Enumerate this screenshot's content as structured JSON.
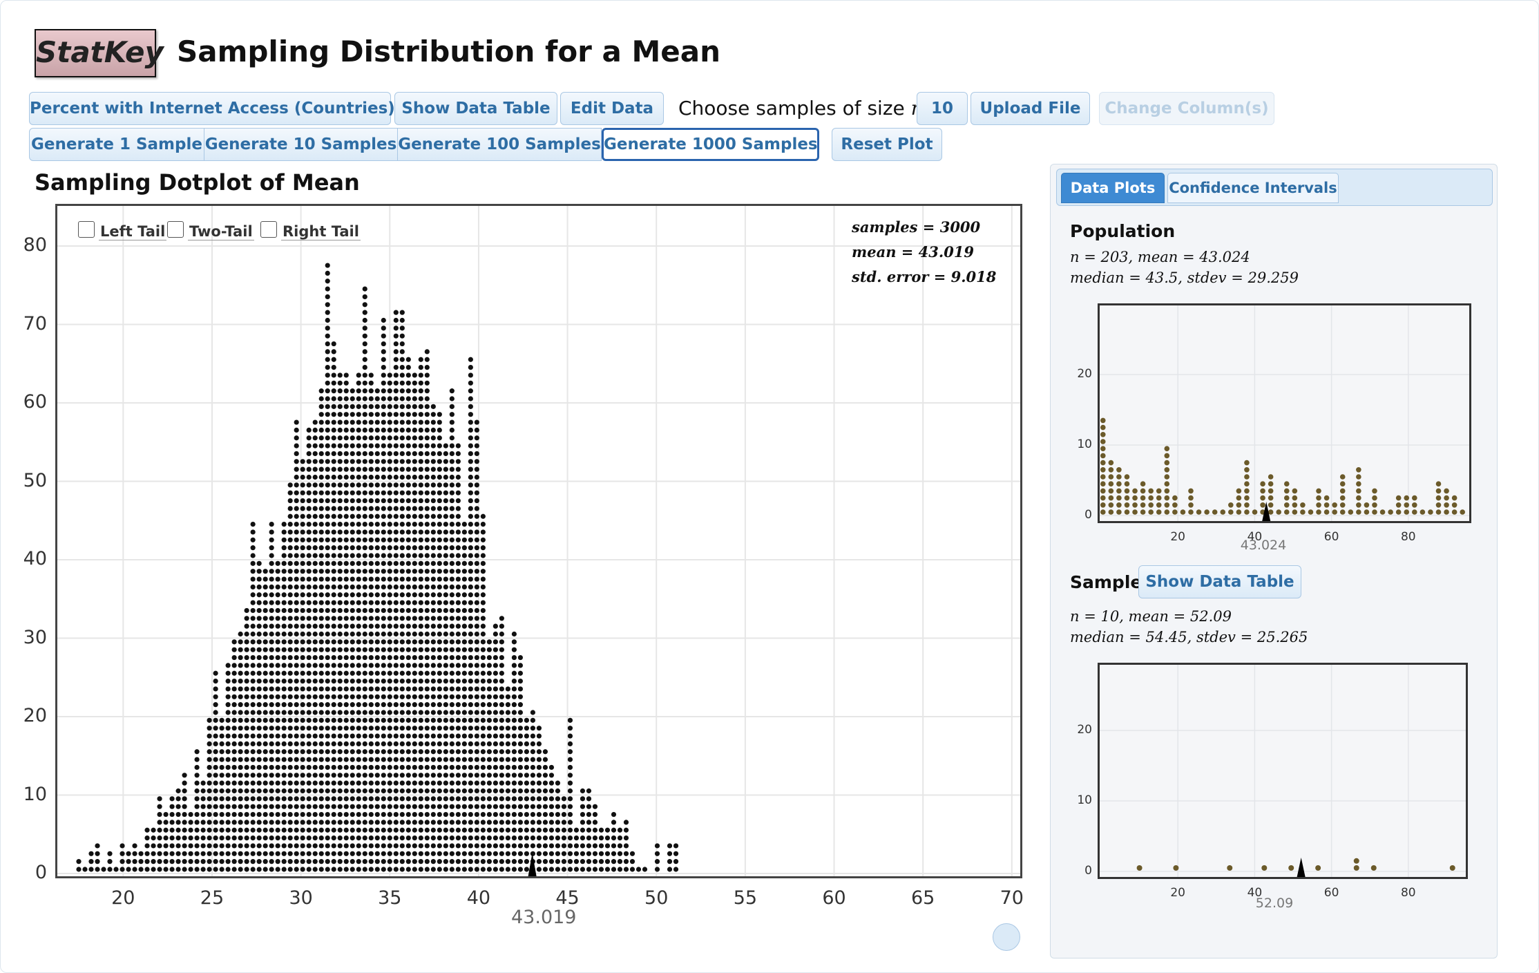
{
  "header": {
    "logo": "StatKey",
    "title": "Sampling Distribution for a Mean"
  },
  "toolbar": {
    "dataset": "Percent with Internet Access (Countries)",
    "show_table": "Show Data Table",
    "edit_data": "Edit Data",
    "choose_text": "Choose samples of size",
    "n_symbol": "n =",
    "n_value": "10",
    "upload": "Upload File",
    "change_columns": "Change Column(s)",
    "gen1": "Generate 1 Sample",
    "gen10": "Generate 10 Samples",
    "gen100": "Generate 100 Samples",
    "gen1000": "Generate 1000 Samples",
    "reset": "Reset Plot"
  },
  "main": {
    "plot_title": "Sampling Dotplot of Mean",
    "tails": [
      "Left Tail",
      "Two-Tail",
      "Right Tail"
    ],
    "stats": [
      "samples = 3000",
      "mean = 43.019",
      "std. error = 9.018"
    ],
    "mean_marker": "43.019"
  },
  "chart_data": [
    {
      "type": "scatter",
      "title": "Sampling Dotplot of Mean",
      "x_ticks": [
        20,
        25,
        30,
        35,
        40,
        45,
        50,
        55,
        60,
        65,
        70
      ],
      "y_ticks": [
        0,
        10,
        20,
        30,
        40,
        50,
        60,
        70,
        80
      ],
      "xlim": [
        17,
        71
      ],
      "ylim": [
        0,
        85
      ],
      "bin_width": 0.35,
      "bins_start": 17.5,
      "counts": [
        2,
        1,
        3,
        4,
        1,
        3,
        1,
        4,
        3,
        4,
        3,
        6,
        6,
        10,
        8,
        10,
        11,
        13,
        8,
        16,
        12,
        20,
        26,
        20,
        27,
        30,
        31,
        34,
        45,
        40,
        39,
        45,
        40,
        45,
        50,
        58,
        53,
        57,
        58,
        62,
        78,
        68,
        64,
        64,
        62,
        64,
        75,
        64,
        62,
        71,
        64,
        72,
        72,
        66,
        64,
        66,
        67,
        60,
        59,
        55,
        62,
        55,
        45,
        66,
        58,
        46,
        30,
        32,
        33,
        24,
        31,
        28,
        20,
        21,
        19,
        16,
        14,
        12,
        10,
        20,
        6,
        11,
        11,
        9,
        6,
        6,
        8,
        6,
        7,
        3,
        1,
        1,
        0,
        4,
        0,
        4,
        4
      ],
      "mean": 43.019,
      "grid": true
    },
    {
      "type": "scatter",
      "title": "Population",
      "x_ticks": [
        20,
        40,
        60,
        80
      ],
      "y_ticks": [
        0,
        10,
        20
      ],
      "xlim": [
        0,
        96
      ],
      "ylim": [
        0,
        28
      ],
      "bin_width": 1.6,
      "bins_start": 0.5,
      "counts": [
        14,
        8,
        7,
        6,
        4,
        5,
        4,
        4,
        10,
        3,
        1,
        4,
        1,
        1,
        1,
        1,
        2,
        4,
        8,
        1,
        5,
        6,
        1,
        5,
        4,
        2,
        1,
        4,
        3,
        2,
        6,
        1,
        7,
        2,
        4,
        1,
        1,
        3,
        3,
        3,
        1,
        1,
        5,
        4,
        3,
        1
      ],
      "mean": 43.024,
      "mean_label": "43.024",
      "grid": true
    },
    {
      "type": "scatter",
      "title": "Sample",
      "x_ticks": [
        20,
        40,
        60,
        80
      ],
      "y_ticks": [
        0,
        10,
        20
      ],
      "xlim": [
        0,
        96
      ],
      "ylim": [
        0,
        28
      ],
      "x": [
        10,
        19.5,
        33.5,
        42.5,
        49.5,
        56.5,
        66.5,
        66.5,
        71,
        91.5
      ],
      "y": [
        1,
        1,
        1,
        1,
        1,
        1,
        1,
        2,
        1,
        1
      ],
      "mean": 52.09,
      "mean_label": "52.09",
      "grid": true
    }
  ],
  "side": {
    "tabs": [
      "Data Plots",
      "Confidence Intervals"
    ],
    "population_label": "Population",
    "population_stats": [
      "n = 203, mean = 43.024",
      "median = 43.5, stdev = 29.259"
    ],
    "sample_label": "Sample",
    "sample_button": "Show Data Table",
    "sample_stats": [
      "n = 10, mean = 52.09",
      "median = 54.45, stdev = 25.265"
    ]
  },
  "colors": {
    "accent": "#2e6da4",
    "dot_main": "#111111",
    "dot_side": "#6b5a2a"
  }
}
